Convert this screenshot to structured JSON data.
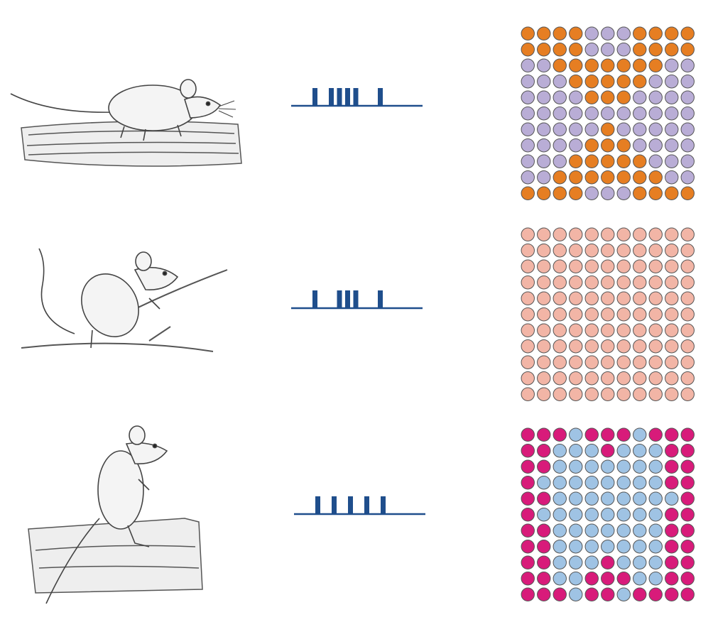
{
  "palette": {
    "ink": "#1f4e8c",
    "sketch": "#555555",
    "sketch_light": "#bbbbbb",
    "row1": {
      "a": "#e67e22",
      "b": "#b9add6"
    },
    "row2": {
      "a": "#f2b5a6"
    },
    "row3": {
      "a": "#d81b7a",
      "b": "#9fc3e4"
    }
  },
  "rows": [
    {
      "animal": "mouse-on-log",
      "barcode_marks": [
        1,
        0,
        1,
        1,
        1,
        1,
        0,
        0,
        1
      ],
      "grid": [
        "aaaabbbaaaa",
        "aaaabbbaaaa",
        "bbaaaaaaabb",
        "bbbaaaaabbb",
        "bbbbaaabbbb",
        "bbbbbbbbbbb",
        "bbbbbabbbbb",
        "bbbbaaabbbb",
        "bbbaaaaabbb",
        "bbaaaaaaabb",
        "aaaabbbaaaa"
      ]
    },
    {
      "animal": "mouse-on-branch",
      "barcode_marks": [
        1,
        0,
        0,
        1,
        1,
        1,
        0,
        0,
        1
      ],
      "grid": [
        "aaaaaaaaaaa",
        "aaaaaaaaaaa",
        "aaaaaaaaaaa",
        "aaaaaaaaaaa",
        "aaaaaaaaaaa",
        "aaaaaaaaaaa",
        "aaaaaaaaaaa",
        "aaaaaaaaaaa",
        "aaaaaaaaaaa",
        "aaaaaaaaaaa",
        "aaaaaaaaaaa"
      ]
    },
    {
      "animal": "mouse-standing",
      "barcode_marks": [
        1,
        0,
        1,
        0,
        1,
        0,
        1,
        0,
        1
      ],
      "grid": [
        "aaabaaabaaa",
        "aabbbabbbaa",
        "aabbbbbbbaa",
        "abbbbbbbbaa",
        "aabbbbbbbba",
        "abbbbbbbbaa",
        "aabbbbbbbaa",
        "aabbbbbbbaa",
        "aabbbabbbaa",
        "aabbaaabbaa",
        "aaabaabaaaa"
      ]
    }
  ]
}
